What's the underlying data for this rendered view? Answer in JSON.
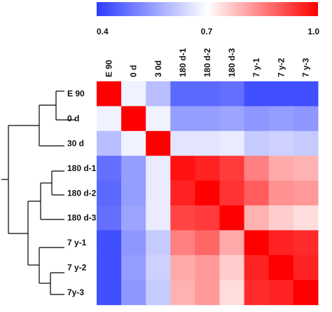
{
  "chart_data": {
    "type": "heatmap",
    "title": "",
    "xlabel": "",
    "ylabel": "",
    "rows": [
      "E 90",
      "0 d",
      "30 d",
      "180 d-1",
      "180 d-2",
      "180 d-3",
      "7 y-1",
      "7 y-2",
      "7y-3"
    ],
    "columns": [
      "E 90",
      "0 d",
      "3 0d",
      "180 d-1",
      "180 d-2",
      "180 d-3",
      "7 y-1",
      "7 y-2",
      "7 y-3"
    ],
    "values": [
      [
        1.0,
        0.68,
        0.6,
        0.47,
        0.47,
        0.48,
        0.43,
        0.43,
        0.43
      ],
      [
        0.68,
        1.0,
        0.68,
        0.55,
        0.55,
        0.56,
        0.54,
        0.55,
        0.54
      ],
      [
        0.6,
        0.68,
        1.0,
        0.66,
        0.66,
        0.67,
        0.62,
        0.63,
        0.62
      ],
      [
        0.48,
        0.55,
        0.67,
        0.98,
        0.96,
        0.93,
        0.85,
        0.8,
        0.79
      ],
      [
        0.47,
        0.55,
        0.67,
        0.96,
        1.0,
        0.94,
        0.89,
        0.83,
        0.82
      ],
      [
        0.48,
        0.56,
        0.67,
        0.92,
        0.93,
        1.0,
        0.79,
        0.76,
        0.74
      ],
      [
        0.43,
        0.54,
        0.62,
        0.85,
        0.88,
        0.8,
        1.0,
        0.96,
        0.95
      ],
      [
        0.43,
        0.55,
        0.63,
        0.8,
        0.82,
        0.76,
        0.96,
        1.0,
        0.96
      ],
      [
        0.43,
        0.54,
        0.62,
        0.79,
        0.82,
        0.74,
        0.95,
        0.96,
        1.0
      ]
    ],
    "colorbar": {
      "min": 0.4,
      "mid": 0.7,
      "max": 1.0,
      "tick_labels": [
        "0.4",
        "0.7",
        "1.0"
      ],
      "color_low": "#2b3bff",
      "color_mid": "#ffffff",
      "color_high": "#ff0000"
    },
    "dendrogram": "rows",
    "grid": false,
    "legend": "top"
  }
}
